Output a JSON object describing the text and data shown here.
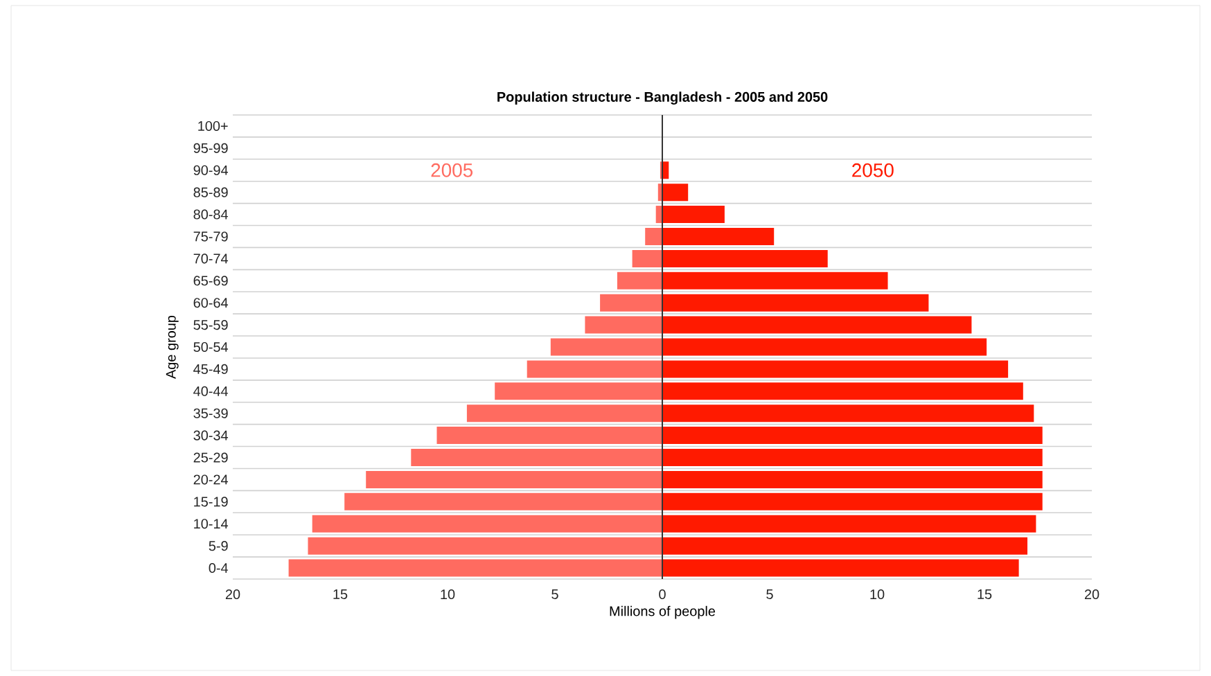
{
  "chart_data": {
    "type": "bar",
    "orientation": "horizontal",
    "title": "Population structure - Bangladesh - 2005 and 2050",
    "xlabel": "Millions of people",
    "ylabel": "Age group",
    "categories": [
      "100+",
      "95-99",
      "90-94",
      "85-89",
      "80-84",
      "75-79",
      "70-74",
      "65-69",
      "60-64",
      "55-59",
      "50-54",
      "45-49",
      "40-44",
      "35-39",
      "30-34",
      "25-29",
      "20-24",
      "15-19",
      "10-14",
      "5-9",
      "0-4"
    ],
    "series": [
      {
        "name": "2005",
        "color": "#ff6b60",
        "values": [
          0,
          0,
          -0.1,
          -0.2,
          -0.3,
          -0.8,
          -1.4,
          -2.1,
          -2.9,
          -3.6,
          -5.2,
          -6.3,
          -7.8,
          -9.1,
          -10.5,
          -11.7,
          -13.8,
          -14.8,
          -16.3,
          -16.5,
          -17.4
        ]
      },
      {
        "name": "2050",
        "color": "#ff1a00",
        "values": [
          0,
          0,
          0.3,
          1.2,
          2.9,
          5.2,
          7.7,
          10.5,
          12.4,
          14.4,
          15.1,
          16.1,
          16.8,
          17.3,
          17.7,
          17.7,
          17.7,
          17.7,
          17.4,
          17.0,
          16.6
        ]
      }
    ],
    "xlim": [
      -20,
      20
    ],
    "xticks": [
      {
        "value": -20,
        "label": "20"
      },
      {
        "value": -15,
        "label": "15"
      },
      {
        "value": -10,
        "label": "10"
      },
      {
        "value": -5,
        "label": "5"
      },
      0,
      5,
      10,
      15,
      20
    ],
    "grid": "y",
    "stacked": true,
    "ref_lines": [
      {
        "axis": "x",
        "value": 0,
        "color": "#333333"
      }
    ]
  }
}
